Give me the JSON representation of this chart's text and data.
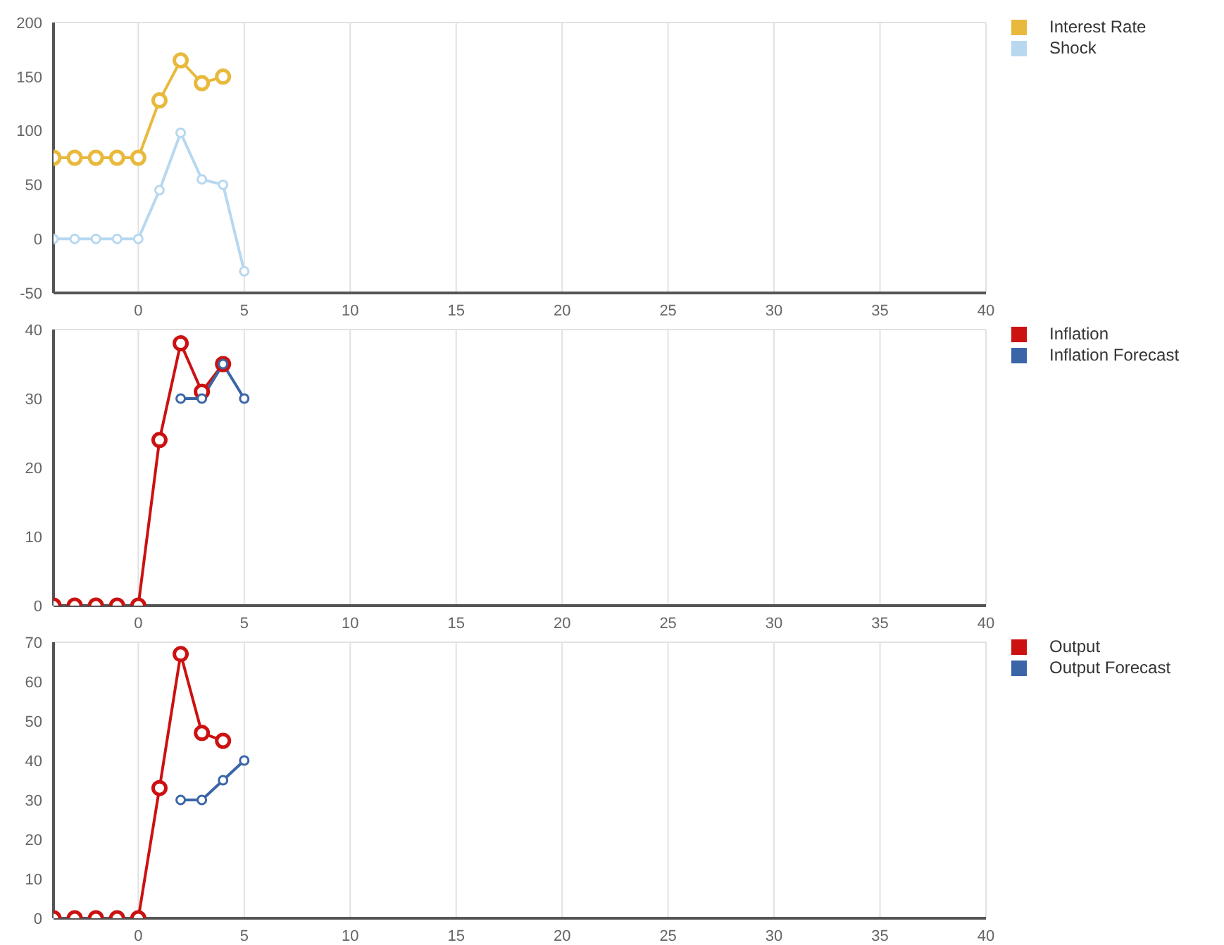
{
  "chart_data": [
    {
      "type": "line",
      "xlim": [
        -4,
        40
      ],
      "xticks": [
        0,
        5,
        10,
        15,
        20,
        25,
        30,
        35,
        40
      ],
      "ylim": [
        -50,
        200
      ],
      "yticks": [
        -50,
        0,
        50,
        100,
        150,
        200
      ],
      "grid": true,
      "legend": "top right",
      "marker": "circle",
      "series": [
        {
          "name": "Interest Rate",
          "color": "#e8b93c",
          "x": [
            -4,
            -3,
            -2,
            -1,
            0,
            1,
            2,
            3,
            4
          ],
          "values": [
            75,
            75,
            75,
            75,
            75,
            128,
            165,
            144,
            150
          ]
        },
        {
          "name": "Shock",
          "color": "#b8d8f0",
          "x": [
            -4,
            -3,
            -2,
            -1,
            0,
            1,
            2,
            3,
            4,
            5
          ],
          "values": [
            0,
            0,
            0,
            0,
            0,
            45,
            98,
            55,
            50,
            -30
          ]
        }
      ]
    },
    {
      "type": "line",
      "xlim": [
        -4,
        40
      ],
      "xticks": [
        0,
        5,
        10,
        15,
        20,
        25,
        30,
        35,
        40
      ],
      "ylim": [
        0,
        40
      ],
      "yticks": [
        0,
        10,
        20,
        30,
        40
      ],
      "grid": true,
      "legend": "top right",
      "marker": "circle",
      "series": [
        {
          "name": "Inflation",
          "color": "#cc1111",
          "x": [
            -4,
            -3,
            -2,
            -1,
            0,
            1,
            2,
            3,
            4
          ],
          "values": [
            0,
            0,
            0,
            0,
            0,
            24,
            38,
            31,
            35
          ]
        },
        {
          "name": "Inflation Forecast",
          "color": "#3a66a8",
          "x": [
            2,
            3,
            4,
            5
          ],
          "values": [
            30,
            30,
            35,
            30
          ]
        }
      ]
    },
    {
      "type": "line",
      "xlim": [
        -4,
        40
      ],
      "xticks": [
        0,
        5,
        10,
        15,
        20,
        25,
        30,
        35,
        40
      ],
      "ylim": [
        0,
        70
      ],
      "yticks": [
        0,
        10,
        20,
        30,
        40,
        50,
        60,
        70
      ],
      "grid": true,
      "legend": "top right",
      "marker": "circle",
      "series": [
        {
          "name": "Output",
          "color": "#cc1111",
          "x": [
            -4,
            -3,
            -2,
            -1,
            0,
            1,
            2,
            3,
            4
          ],
          "values": [
            0,
            0,
            0,
            0,
            0,
            33,
            67,
            47,
            45
          ]
        },
        {
          "name": "Output Forecast",
          "color": "#3a66a8",
          "x": [
            2,
            3,
            4,
            5
          ],
          "values": [
            30,
            30,
            35,
            40
          ]
        }
      ]
    }
  ]
}
